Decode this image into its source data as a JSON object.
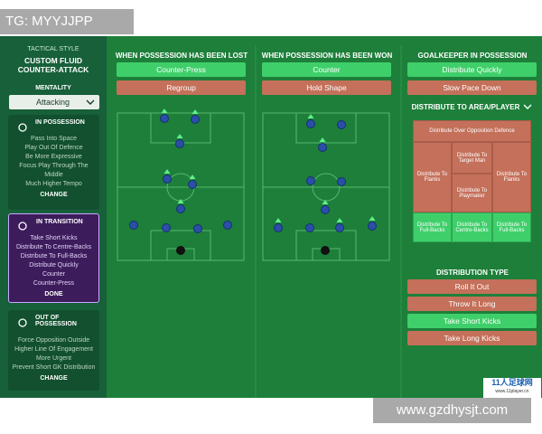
{
  "watermark_top": "TG: MYYJJPP",
  "watermark_bottom": "www.gzdhysjt.com",
  "logo": {
    "name": "11人足球网",
    "url": "www.11player.cn"
  },
  "sidebar": {
    "tactical_style": "TACTICAL STYLE",
    "style_name": [
      "CUSTOM FLUID",
      "COUNTER-ATTACK"
    ],
    "mentality_label": "MENTALITY",
    "mentality": "Attacking",
    "sections": [
      {
        "title": "IN POSSESSION",
        "items": [
          "Pass Into Space",
          "Play Out Of Defence",
          "Be More Expressive",
          "Focus Play Through The Middle",
          "Much Higher Tempo"
        ],
        "button": "CHANGE"
      },
      {
        "title": "IN TRANSITION",
        "items": [
          "Take Short Kicks",
          "Distribute To Centre-Backs",
          "Distribute To Full-Backs",
          "Distribute Quickly",
          "Counter",
          "Counter-Press"
        ],
        "button": "DONE"
      },
      {
        "title": "OUT OF POSSESSION",
        "items": [
          "Force Opposition Outside",
          "Higher Line Of Engagement",
          "More Urgent",
          "Prevent Short GK Distribution"
        ],
        "button": "CHANGE"
      }
    ]
  },
  "columns": [
    {
      "title": "WHEN POSSESSION HAS BEEN LOST",
      "options": [
        "Counter-Press",
        "Regroup"
      ]
    },
    {
      "title": "WHEN POSSESSION HAS BEEN WON",
      "options": [
        "Counter",
        "Hold Shape"
      ]
    },
    {
      "title": "GOALKEEPER IN POSSESSION",
      "options": [
        "Distribute Quickly",
        "Slow Pace Down"
      ]
    }
  ],
  "distribute_area": {
    "title": "DISTRIBUTE TO AREA/PLAYER",
    "zones": [
      "Distribute Over Opposition Defence",
      "Distribute To Flanks",
      "Distribute To Target Man",
      "Distribute To Playmaker",
      "Distribute To Flanks",
      "Distribute To Full-Backs",
      "Distribute To Centre-Backs",
      "Distribute To Full-Backs"
    ]
  },
  "distribution_type": {
    "title": "DISTRIBUTION TYPE",
    "options": [
      "Roll It Out",
      "Throw It Long",
      "Take Short Kicks",
      "Take Long Kicks"
    ]
  }
}
